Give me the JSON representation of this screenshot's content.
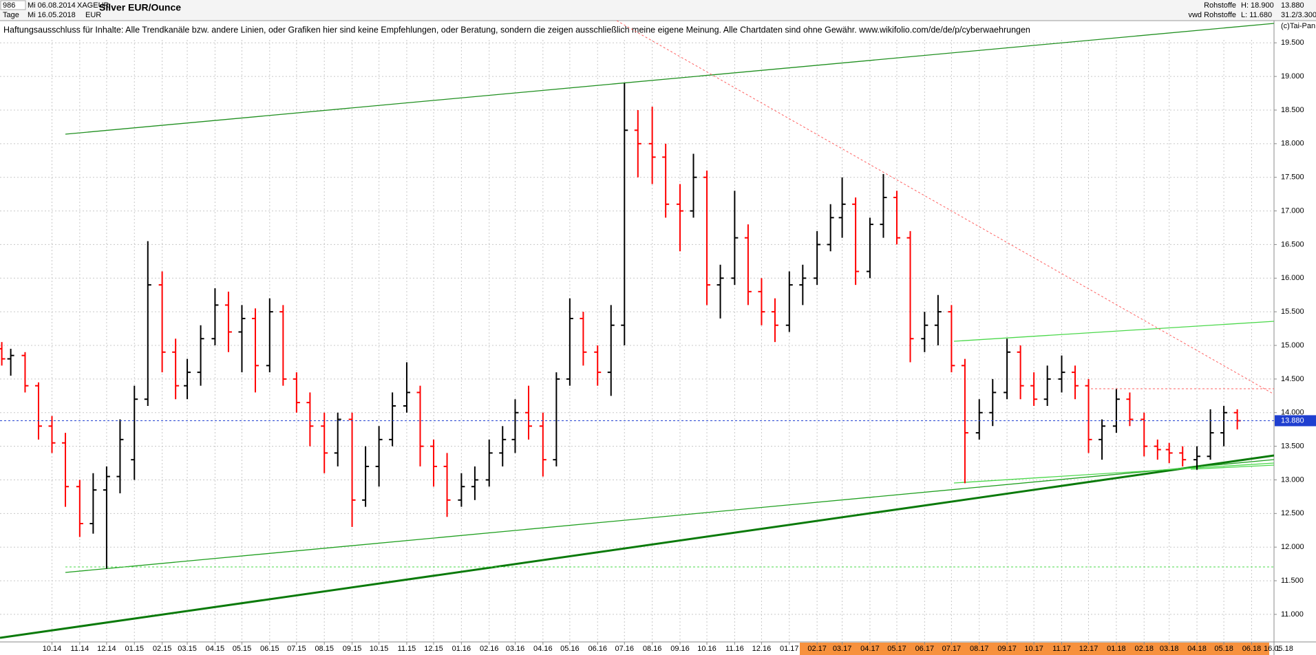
{
  "header": {
    "id": "986",
    "from": "Mi 06.08.2014",
    "symbol": "XAGEUR",
    "period": "Tage",
    "to": "Mi 16.05.2018",
    "currency": "EUR",
    "exchange": "Rohstoffe",
    "source": "vwd Rohstoffe",
    "high": "H: 18.900",
    "low": "L: 11.680",
    "change": "31.2/3.300",
    "copyright": "(c)Tai-Pan"
  },
  "footer": {
    "date": "16.05.18",
    "mode": "L"
  },
  "chart_data": {
    "type": "ohlc",
    "title": "Silver EUR/Ounce",
    "subtitle": "Haftungsausschluss für Inhalte: Alle Trendkanäle bzw. andere Linien, oder Grafiken hier sind keine Empfehlungen, oder Beratung, sondern die zeigen ausschließlich meine eigene Meinung. Alle Chartdaten sind ohne Gewähr.  www.wikifolio.com/de/de/p/cyberwaehrungen",
    "up_color": "#000000",
    "down_color": "#ff0000",
    "grid": true,
    "last": {
      "value": 13.88,
      "label": "13.880"
    },
    "last_color": "#1f3fd0",
    "xlim": [
      "2014-08-04",
      "2018-06-26"
    ],
    "ylim": [
      10.59,
      19.83
    ],
    "yticks": [
      {
        "value": 11,
        "label": "11.000"
      },
      {
        "value": 11.5,
        "label": "11.500"
      },
      {
        "value": 12,
        "label": "12.000"
      },
      {
        "value": 12.5,
        "label": "12.500"
      },
      {
        "value": 13,
        "label": "13.000"
      },
      {
        "value": 13.5,
        "label": "13.500"
      },
      {
        "value": 14,
        "label": "14.000"
      },
      {
        "value": 14.5,
        "label": "14.500"
      },
      {
        "value": 15,
        "label": "15.000"
      },
      {
        "value": 15.5,
        "label": "15.500"
      },
      {
        "value": 16,
        "label": "16.000"
      },
      {
        "value": 16.5,
        "label": "16.500"
      },
      {
        "value": 17,
        "label": "17.000"
      },
      {
        "value": 17.5,
        "label": "17.500"
      },
      {
        "value": 18,
        "label": "18.000"
      },
      {
        "value": 18.5,
        "label": "18.500"
      },
      {
        "value": 19,
        "label": "19.000"
      },
      {
        "value": 19.5,
        "label": "19.500"
      }
    ],
    "xticks": [
      {
        "value": "2014-10-01",
        "label": "10.14"
      },
      {
        "value": "2014-11-01",
        "label": "11.14"
      },
      {
        "value": "2014-12-01",
        "label": "12.14"
      },
      {
        "value": "2015-01-01",
        "label": "01.15"
      },
      {
        "value": "2015-02-01",
        "label": "02.15"
      },
      {
        "value": "2015-03-01",
        "label": "03.15"
      },
      {
        "value": "2015-04-01",
        "label": "04.15"
      },
      {
        "value": "2015-05-01",
        "label": "05.15"
      },
      {
        "value": "2015-06-01",
        "label": "06.15"
      },
      {
        "value": "2015-07-01",
        "label": "07.15"
      },
      {
        "value": "2015-08-01",
        "label": "08.15"
      },
      {
        "value": "2015-09-01",
        "label": "09.15"
      },
      {
        "value": "2015-10-01",
        "label": "10.15"
      },
      {
        "value": "2015-11-01",
        "label": "11.15"
      },
      {
        "value": "2015-12-01",
        "label": "12.15"
      },
      {
        "value": "2016-01-01",
        "label": "01.16"
      },
      {
        "value": "2016-02-01",
        "label": "02.16"
      },
      {
        "value": "2016-03-01",
        "label": "03.16"
      },
      {
        "value": "2016-04-01",
        "label": "04.16"
      },
      {
        "value": "2016-05-01",
        "label": "05.16"
      },
      {
        "value": "2016-06-01",
        "label": "06.16"
      },
      {
        "value": "2016-07-01",
        "label": "07.16"
      },
      {
        "value": "2016-08-01",
        "label": "08.16"
      },
      {
        "value": "2016-09-01",
        "label": "09.16"
      },
      {
        "value": "2016-10-01",
        "label": "10.16"
      },
      {
        "value": "2016-11-01",
        "label": "11.16"
      },
      {
        "value": "2016-12-01",
        "label": "12.16"
      },
      {
        "value": "2017-01-01",
        "label": "01.17"
      },
      {
        "value": "2017-02-01",
        "label": "02.17"
      },
      {
        "value": "2017-03-01",
        "label": "03.17"
      },
      {
        "value": "2017-04-01",
        "label": "04.17"
      },
      {
        "value": "2017-05-01",
        "label": "05.17"
      },
      {
        "value": "2017-06-01",
        "label": "06.17"
      },
      {
        "value": "2017-07-01",
        "label": "07.17"
      },
      {
        "value": "2017-08-01",
        "label": "08.17"
      },
      {
        "value": "2017-09-01",
        "label": "09.17"
      },
      {
        "value": "2017-10-01",
        "label": "10.17"
      },
      {
        "value": "2017-11-01",
        "label": "11.17"
      },
      {
        "value": "2017-12-01",
        "label": "12.17"
      },
      {
        "value": "2018-01-01",
        "label": "01.18"
      },
      {
        "value": "2018-02-01",
        "label": "02.18"
      },
      {
        "value": "2018-03-01",
        "label": "03.18"
      },
      {
        "value": "2018-04-01",
        "label": "04.18"
      },
      {
        "value": "2018-05-01",
        "label": "05.18"
      },
      {
        "value": "2018-06-01",
        "label": "06.18"
      }
    ],
    "x": [
      "2014-08-06",
      "2014-08-16",
      "2014-09-01",
      "2014-09-16",
      "2014-10-01",
      "2014-10-16",
      "2014-11-01",
      "2014-11-16",
      "2014-12-01",
      "2014-12-16",
      "2015-01-01",
      "2015-01-16",
      "2015-02-01",
      "2015-02-16",
      "2015-03-01",
      "2015-03-16",
      "2015-04-01",
      "2015-04-16",
      "2015-05-01",
      "2015-05-16",
      "2015-06-01",
      "2015-06-16",
      "2015-07-01",
      "2015-07-16",
      "2015-08-01",
      "2015-08-16",
      "2015-09-01",
      "2015-09-16",
      "2015-10-01",
      "2015-10-16",
      "2015-11-01",
      "2015-11-16",
      "2015-12-01",
      "2015-12-16",
      "2016-01-01",
      "2016-01-16",
      "2016-02-01",
      "2016-02-16",
      "2016-03-01",
      "2016-03-16",
      "2016-04-01",
      "2016-04-16",
      "2016-05-01",
      "2016-05-16",
      "2016-06-01",
      "2016-06-16",
      "2016-07-01",
      "2016-07-16",
      "2016-08-01",
      "2016-08-16",
      "2016-09-01",
      "2016-09-16",
      "2016-10-01",
      "2016-10-16",
      "2016-11-01",
      "2016-11-16",
      "2016-12-01",
      "2016-12-16",
      "2017-01-01",
      "2017-01-16",
      "2017-02-01",
      "2017-02-16",
      "2017-03-01",
      "2017-03-16",
      "2017-04-01",
      "2017-04-16",
      "2017-05-01",
      "2017-05-16",
      "2017-06-01",
      "2017-06-16",
      "2017-07-01",
      "2017-07-16",
      "2017-08-01",
      "2017-08-16",
      "2017-09-01",
      "2017-09-16",
      "2017-10-01",
      "2017-10-16",
      "2017-11-01",
      "2017-11-16",
      "2017-12-01",
      "2017-12-16",
      "2018-01-01",
      "2018-01-16",
      "2018-02-01",
      "2018-02-16",
      "2018-03-01",
      "2018-03-16",
      "2018-04-01",
      "2018-04-16",
      "2018-05-01",
      "2018-05-16"
    ],
    "ohlc": [
      [
        14.95,
        15.05,
        14.7,
        14.8
      ],
      [
        14.8,
        14.95,
        14.55,
        14.85
      ],
      [
        14.85,
        14.9,
        14.3,
        14.4
      ],
      [
        14.4,
        14.45,
        13.6,
        13.8
      ],
      [
        13.8,
        13.95,
        13.4,
        13.55
      ],
      [
        13.55,
        13.7,
        12.6,
        12.9
      ],
      [
        12.9,
        13.0,
        12.15,
        12.35
      ],
      [
        12.35,
        13.1,
        12.2,
        12.85
      ],
      [
        12.85,
        13.2,
        11.68,
        13.05
      ],
      [
        13.05,
        13.9,
        12.8,
        13.6
      ],
      [
        13.3,
        14.4,
        13.0,
        14.2
      ],
      [
        14.2,
        16.55,
        14.1,
        15.9
      ],
      [
        15.9,
        16.1,
        14.6,
        14.9
      ],
      [
        14.9,
        15.1,
        14.2,
        14.4
      ],
      [
        14.4,
        14.8,
        14.2,
        14.6
      ],
      [
        14.6,
        15.3,
        14.4,
        15.1
      ],
      [
        15.1,
        15.85,
        15.0,
        15.6
      ],
      [
        15.6,
        15.8,
        14.9,
        15.2
      ],
      [
        15.2,
        15.6,
        14.6,
        15.4
      ],
      [
        15.4,
        15.55,
        14.3,
        14.7
      ],
      [
        14.7,
        15.7,
        14.6,
        15.5
      ],
      [
        15.5,
        15.6,
        14.4,
        14.5
      ],
      [
        14.5,
        14.6,
        14.0,
        14.15
      ],
      [
        14.15,
        14.3,
        13.5,
        13.8
      ],
      [
        13.8,
        14.0,
        13.1,
        13.4
      ],
      [
        13.4,
        14.0,
        13.2,
        13.9
      ],
      [
        13.9,
        14.0,
        12.3,
        12.7
      ],
      [
        12.7,
        13.5,
        12.6,
        13.2
      ],
      [
        13.2,
        13.8,
        12.9,
        13.6
      ],
      [
        13.6,
        14.3,
        13.5,
        14.1
      ],
      [
        14.1,
        14.75,
        14.0,
        14.3
      ],
      [
        14.3,
        14.4,
        13.2,
        13.5
      ],
      [
        13.5,
        13.6,
        12.9,
        13.2
      ],
      [
        13.2,
        13.4,
        12.45,
        12.7
      ],
      [
        12.7,
        13.1,
        12.6,
        12.9
      ],
      [
        12.9,
        13.2,
        12.7,
        13.0
      ],
      [
        13.0,
        13.6,
        12.9,
        13.4
      ],
      [
        13.4,
        13.8,
        13.2,
        13.6
      ],
      [
        13.6,
        14.2,
        13.4,
        14.0
      ],
      [
        14.0,
        14.4,
        13.6,
        13.8
      ],
      [
        13.8,
        14.0,
        13.05,
        13.3
      ],
      [
        13.3,
        14.6,
        13.2,
        14.5
      ],
      [
        14.5,
        15.7,
        14.4,
        15.4
      ],
      [
        15.4,
        15.5,
        14.7,
        14.9
      ],
      [
        14.9,
        15.0,
        14.4,
        14.6
      ],
      [
        14.6,
        15.6,
        14.25,
        15.3
      ],
      [
        15.3,
        18.9,
        15.0,
        18.2
      ],
      [
        18.2,
        18.5,
        17.5,
        18.0
      ],
      [
        18.0,
        18.55,
        17.4,
        17.8
      ],
      [
        17.8,
        18.0,
        16.9,
        17.1
      ],
      [
        17.1,
        17.4,
        16.4,
        17.0
      ],
      [
        17.0,
        17.85,
        16.9,
        17.5
      ],
      [
        17.5,
        17.6,
        15.6,
        15.9
      ],
      [
        15.9,
        16.2,
        15.4,
        16.0
      ],
      [
        16.0,
        17.3,
        15.9,
        16.6
      ],
      [
        16.6,
        16.8,
        15.6,
        15.8
      ],
      [
        15.8,
        16.0,
        15.3,
        15.5
      ],
      [
        15.5,
        15.7,
        15.05,
        15.3
      ],
      [
        15.3,
        16.1,
        15.2,
        15.9
      ],
      [
        15.9,
        16.2,
        15.6,
        16.0
      ],
      [
        16.0,
        16.7,
        15.9,
        16.5
      ],
      [
        16.5,
        17.1,
        16.4,
        16.9
      ],
      [
        16.9,
        17.5,
        16.6,
        17.1
      ],
      [
        17.1,
        17.2,
        15.9,
        16.1
      ],
      [
        16.1,
        16.9,
        16.0,
        16.8
      ],
      [
        16.8,
        17.55,
        16.6,
        17.2
      ],
      [
        17.2,
        17.3,
        16.5,
        16.6
      ],
      [
        16.6,
        16.7,
        14.75,
        15.1
      ],
      [
        15.1,
        15.5,
        14.9,
        15.3
      ],
      [
        15.3,
        15.75,
        15.0,
        15.5
      ],
      [
        15.5,
        15.6,
        14.6,
        14.7
      ],
      [
        14.7,
        14.8,
        12.95,
        13.7
      ],
      [
        13.7,
        14.2,
        13.6,
        14.0
      ],
      [
        14.0,
        14.5,
        13.8,
        14.3
      ],
      [
        14.3,
        15.1,
        14.2,
        14.9
      ],
      [
        14.9,
        15.0,
        14.2,
        14.4
      ],
      [
        14.4,
        14.6,
        14.1,
        14.2
      ],
      [
        14.2,
        14.7,
        14.1,
        14.5
      ],
      [
        14.5,
        14.85,
        14.3,
        14.6
      ],
      [
        14.6,
        14.7,
        14.2,
        14.4
      ],
      [
        14.4,
        14.5,
        13.4,
        13.6
      ],
      [
        13.6,
        13.9,
        13.3,
        13.8
      ],
      [
        13.8,
        14.35,
        13.7,
        14.2
      ],
      [
        14.2,
        14.3,
        13.8,
        13.9
      ],
      [
        13.9,
        14.0,
        13.35,
        13.5
      ],
      [
        13.5,
        13.6,
        13.3,
        13.45
      ],
      [
        13.45,
        13.55,
        13.25,
        13.4
      ],
      [
        13.4,
        13.5,
        13.2,
        13.3
      ],
      [
        13.3,
        13.5,
        13.15,
        13.35
      ],
      [
        13.35,
        14.05,
        13.3,
        13.7
      ],
      [
        13.7,
        14.1,
        13.5,
        14.0
      ],
      [
        14.0,
        14.05,
        13.75,
        13.88
      ]
    ]
  }
}
